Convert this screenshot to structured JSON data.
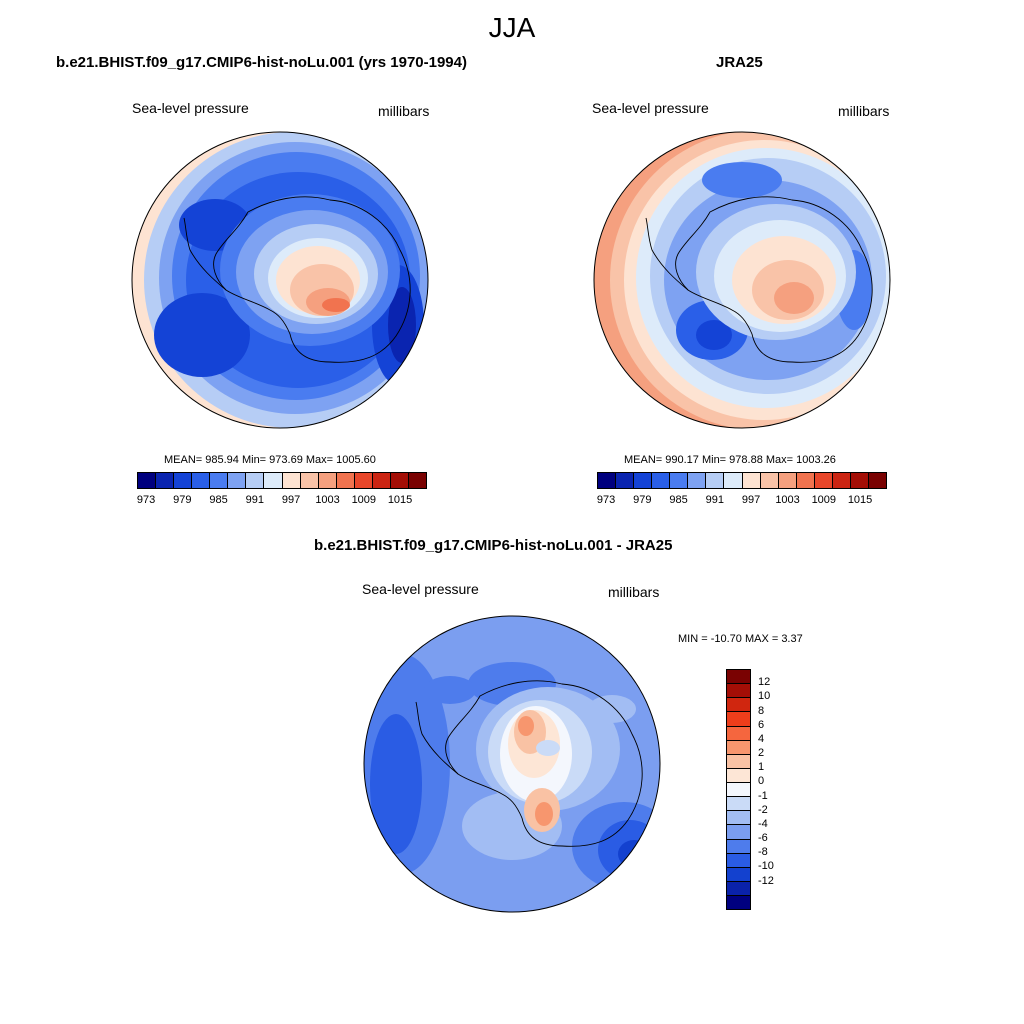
{
  "title": "JJA",
  "panels": [
    {
      "title": "b.e21.BHIST.f09_g17.CMIP6-hist-noLu.001 (yrs 1970-1994)",
      "left_label": "Sea-level pressure",
      "right_label": "millibars",
      "stats": "MEAN= 985.94  Min= 973.69  Max= 1005.60",
      "colorbar_ticks": [
        "973",
        "979",
        "985",
        "991",
        "997",
        "1003",
        "1009",
        "1015"
      ]
    },
    {
      "title": "JRA25",
      "left_label": "Sea-level pressure",
      "right_label": "millibars",
      "stats": "MEAN= 990.17  Min= 978.88  Max= 1003.26",
      "colorbar_ticks": [
        "973",
        "979",
        "985",
        "991",
        "997",
        "1003",
        "1009",
        "1015"
      ]
    },
    {
      "title": "b.e21.BHIST.f09_g17.CMIP6-hist-noLu.001 - JRA25",
      "left_label": "Sea-level pressure",
      "right_label": "millibars",
      "stats": "MIN = -10.70 MAX =   3.37",
      "colorbar_ticks": [
        "12",
        "10",
        "8",
        "6",
        "4",
        "2",
        "1",
        "0",
        "-1",
        "-2",
        "-4",
        "-6",
        "-8",
        "-10",
        "-12"
      ]
    }
  ],
  "colors": {
    "abs_palette": [
      "#00007f",
      "#0a24b0",
      "#1443d6",
      "#2a5fe8",
      "#4a7cf0",
      "#7ea2f2",
      "#b6cdf5",
      "#ddebfa",
      "#fde3d2",
      "#f9c3a8",
      "#f5a07f",
      "#f1734f",
      "#e8462a",
      "#cb2412",
      "#a40e06",
      "#7a0202"
    ],
    "diff_palette": [
      "#7a0202",
      "#a40e06",
      "#d0260f",
      "#ed3e1b",
      "#f5663e",
      "#f7966e",
      "#f9c2a4",
      "#fde6d6",
      "#f4f7fd",
      "#cadbf7",
      "#a2bdf3",
      "#7b9ef0",
      "#4e7cec",
      "#2a5ce4",
      "#1341cf",
      "#0a22aa",
      "#00007f"
    ]
  },
  "chart_data": [
    {
      "type": "heatmap",
      "title": "b.e21.BHIST.f09_g17.CMIP6-hist-noLu.001 (yrs 1970-1994)",
      "variable": "Sea-level pressure",
      "units": "millibars",
      "mean": 985.94,
      "min": 973.69,
      "max": 1005.6,
      "levels": [
        973,
        976,
        979,
        982,
        985,
        988,
        991,
        994,
        997,
        1000,
        1003,
        1006,
        1009,
        1012,
        1015
      ]
    },
    {
      "type": "heatmap",
      "title": "JRA25",
      "variable": "Sea-level pressure",
      "units": "millibars",
      "mean": 990.17,
      "min": 978.88,
      "max": 1003.26,
      "levels": [
        973,
        976,
        979,
        982,
        985,
        988,
        991,
        994,
        997,
        1000,
        1003,
        1006,
        1009,
        1012,
        1015
      ]
    },
    {
      "type": "heatmap",
      "title": "b.e21.BHIST.f09_g17.CMIP6-hist-noLu.001 - JRA25",
      "variable": "Sea-level pressure",
      "units": "millibars",
      "min": -10.7,
      "max": 3.37,
      "levels": [
        -12,
        -10,
        -8,
        -6,
        -4,
        -2,
        -1,
        0,
        1,
        2,
        4,
        6,
        8,
        10,
        12
      ]
    }
  ]
}
